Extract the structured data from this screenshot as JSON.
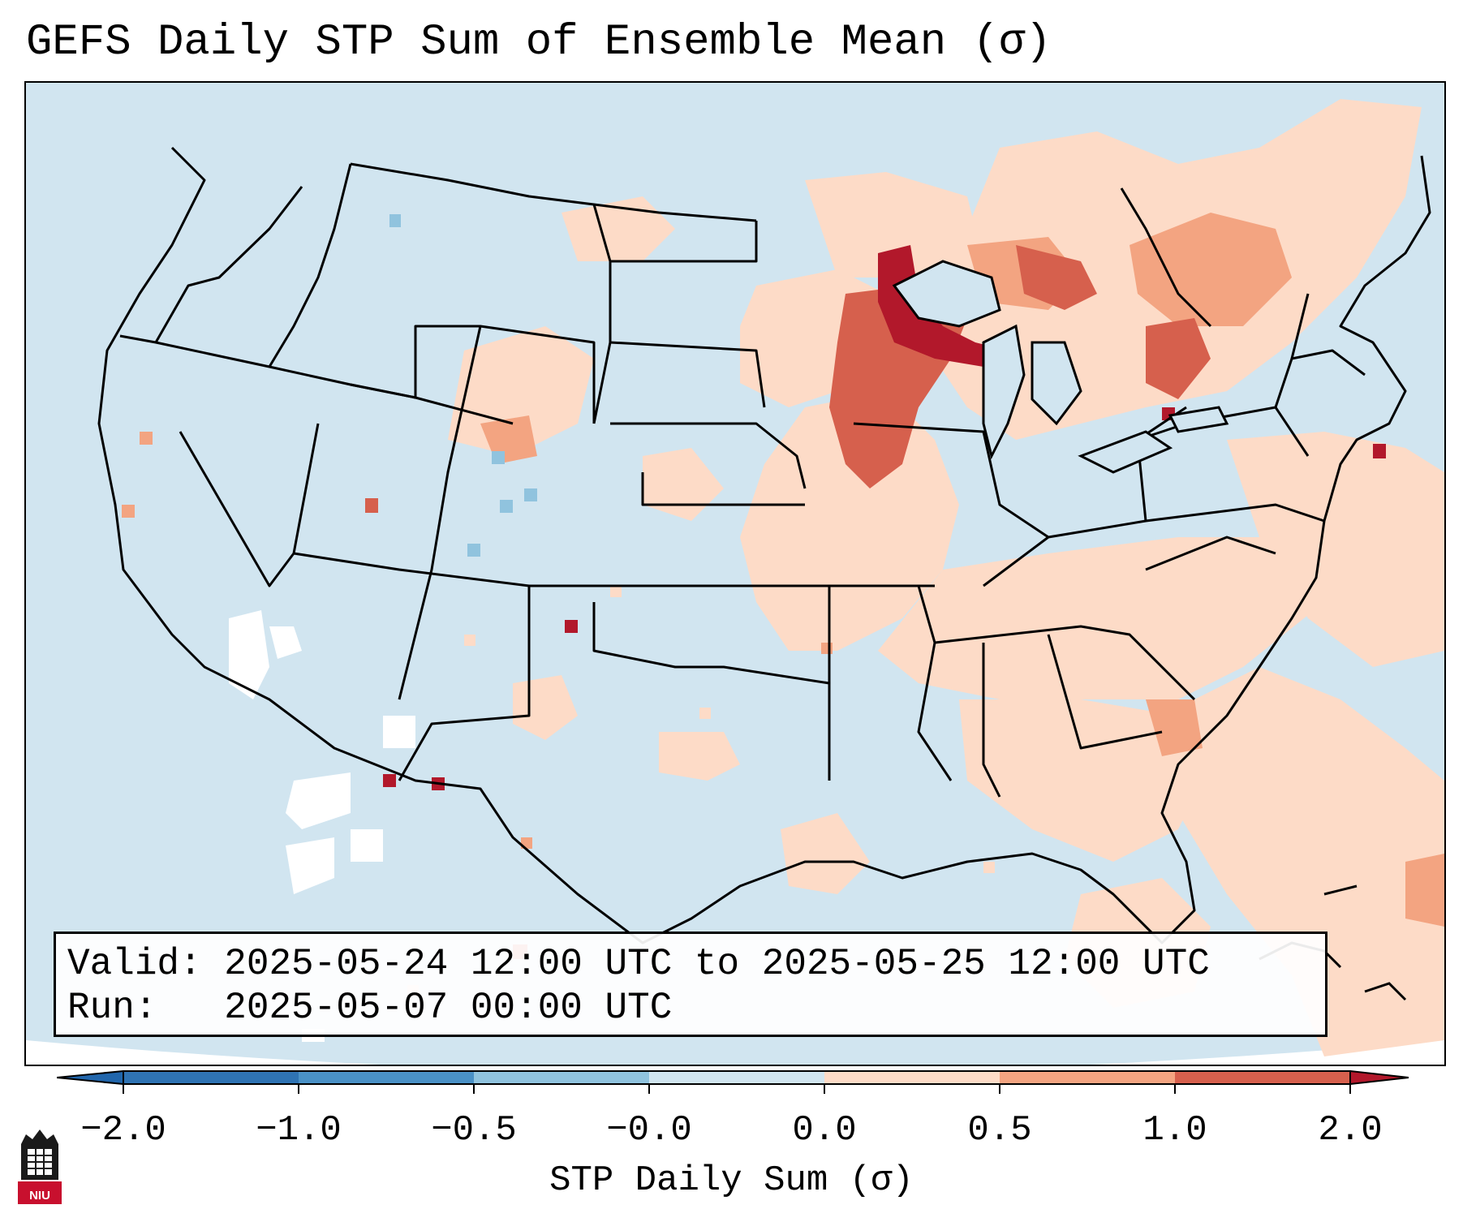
{
  "title": "GEFS Daily STP Sum of Ensemble Mean (σ)",
  "info": {
    "valid": "Valid: 2025-05-24 12:00 UTC to 2025-05-25 12:00 UTC",
    "run": "Run:   2025-05-07 00:00 UTC"
  },
  "colorbar": {
    "label": "STP Daily Sum (σ)",
    "ticks": [
      "−2.0",
      "−1.0",
      "−0.5",
      "−0.0",
      "0.0",
      "0.5",
      "1.0",
      "2.0"
    ],
    "bins": [
      {
        "color": "#2f73b3"
      },
      {
        "color": "#4a91c6"
      },
      {
        "color": "#90c3de"
      },
      {
        "color": "#d1e5f0"
      },
      {
        "color": "#fddbc7"
      },
      {
        "color": "#f3a481"
      },
      {
        "color": "#d6604d"
      },
      {
        "color": "#b2182b"
      }
    ],
    "extend_low_color": "#2166ac",
    "extend_high_color": "#b2182b"
  },
  "colors": {
    "ocean_background": "#d1e5f0",
    "border_color": "#000000"
  },
  "logo": {
    "text": "NIU",
    "icon": "niu-tower-logo-icon",
    "background": "#1a1a1a",
    "accent": "#c8102e"
  }
}
